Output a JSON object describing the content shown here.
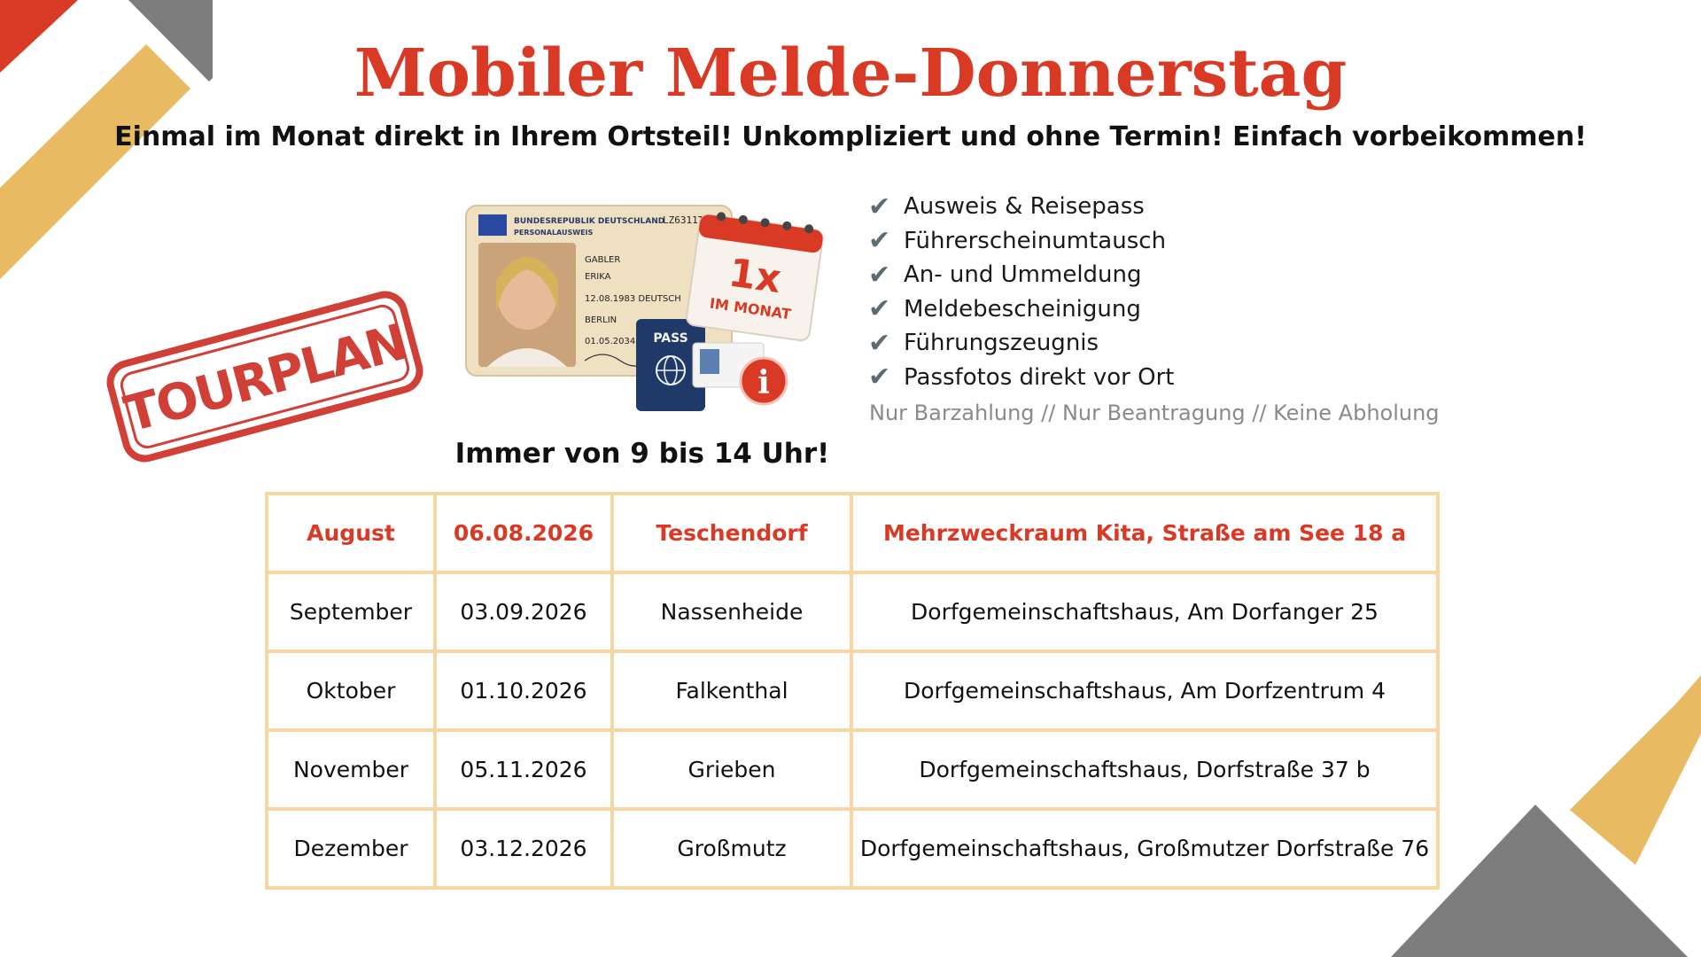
{
  "colors": {
    "accent_red": "#d93a26",
    "accent_gold": "#e8bb63",
    "deco_gray": "#7d7d7d",
    "table_border": "#f7d7a1"
  },
  "title": "Mobiler Melde-Donnerstag",
  "subtitle": "Einmal im Monat direkt in Ihrem Ortsteil! Unkompliziert und ohne Termin! Einfach vorbeikommen!",
  "stamp_label": "TOURPLAN",
  "illustration": {
    "id_card_header": "BUNDESREPUBLIK DEUTSCHLAND",
    "id_card_type": "PERSONALAUSWEIS",
    "id_number": "LZ6311T47",
    "surname": "GABLER",
    "given_name": "ERIKA",
    "birth": "12.08.1983 DEUTSCH",
    "place": "BERLIN",
    "expiry": "01.05.2034",
    "passport_label": "PASS",
    "calendar_big": "1x",
    "calendar_small": "IM MONAT",
    "info_symbol": "i"
  },
  "services": [
    "Ausweis & Reisepass",
    "Führerscheinumtausch",
    "An- und Ummeldung",
    "Meldebescheinigung",
    "Führungszeugnis",
    "Passfotos direkt vor Ort"
  ],
  "check_symbol": "✔",
  "note": "Nur Barzahlung // Nur Beantragung // Keine Abholung",
  "hours": "Immer von 9 bis 14 Uhr!",
  "schedule": [
    {
      "month": "August",
      "date": "06.08.2026",
      "village": "Teschendorf",
      "location": "Mehrzweckraum Kita, Straße am See 18 a"
    },
    {
      "month": "September",
      "date": "03.09.2026",
      "village": "Nassenheide",
      "location": "Dorfgemeinschaftshaus, Am Dorfanger 25"
    },
    {
      "month": "Oktober",
      "date": "01.10.2026",
      "village": "Falkenthal",
      "location": "Dorfgemeinschaftshaus, Am Dorfzentrum 4"
    },
    {
      "month": "November",
      "date": "05.11.2026",
      "village": "Grieben",
      "location": "Dorfgemeinschaftshaus, Dorfstraße 37 b"
    },
    {
      "month": "Dezember",
      "date": "03.12.2026",
      "village": "Großmutz",
      "location": "Dorfgemeinschaftshaus, Großmutzer Dorfstraße 76"
    }
  ]
}
